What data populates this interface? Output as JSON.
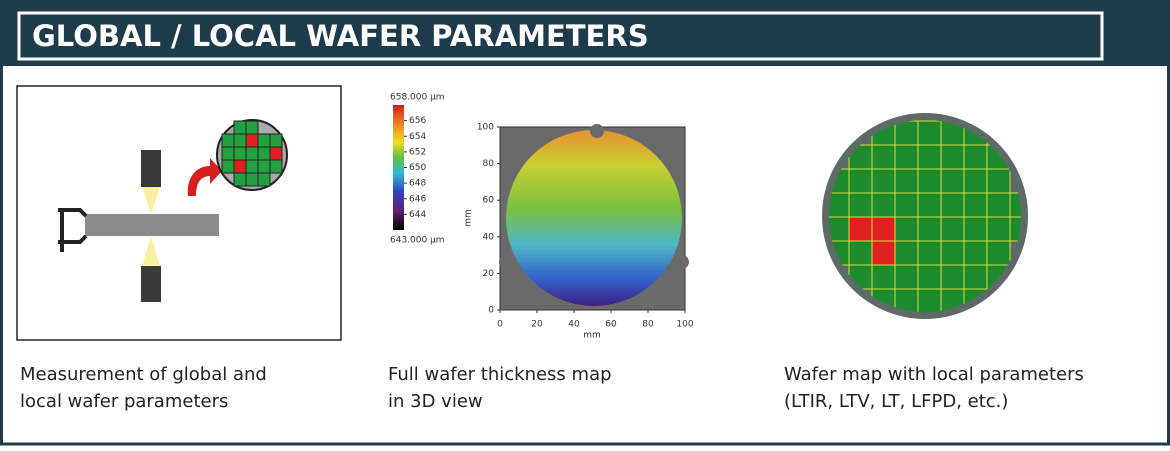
{
  "header": {
    "title": "GLOBAL / LOCAL WAFER PARAMETERS"
  },
  "panels": [
    {
      "caption": [
        "Measurement of global and",
        "local wafer parameters"
      ]
    },
    {
      "caption": [
        "Full wafer thickness map",
        "in 3D view"
      ],
      "colorbar": {
        "max_label": "658.000 µm",
        "min_label": "643.000 µm",
        "ticks": [
          "656",
          "654",
          "652",
          "650",
          "648",
          "646",
          "644"
        ]
      },
      "x_axis": {
        "label": "mm",
        "ticks": [
          0,
          20,
          40,
          60,
          80,
          100
        ]
      },
      "y_axis": {
        "label": "mm",
        "ticks": [
          0,
          20,
          40,
          60,
          80,
          100
        ]
      }
    },
    {
      "caption": [
        "Wafer map with local parameters",
        "(LTIR, LTV, LT, LFPD, etc.)"
      ]
    }
  ]
}
